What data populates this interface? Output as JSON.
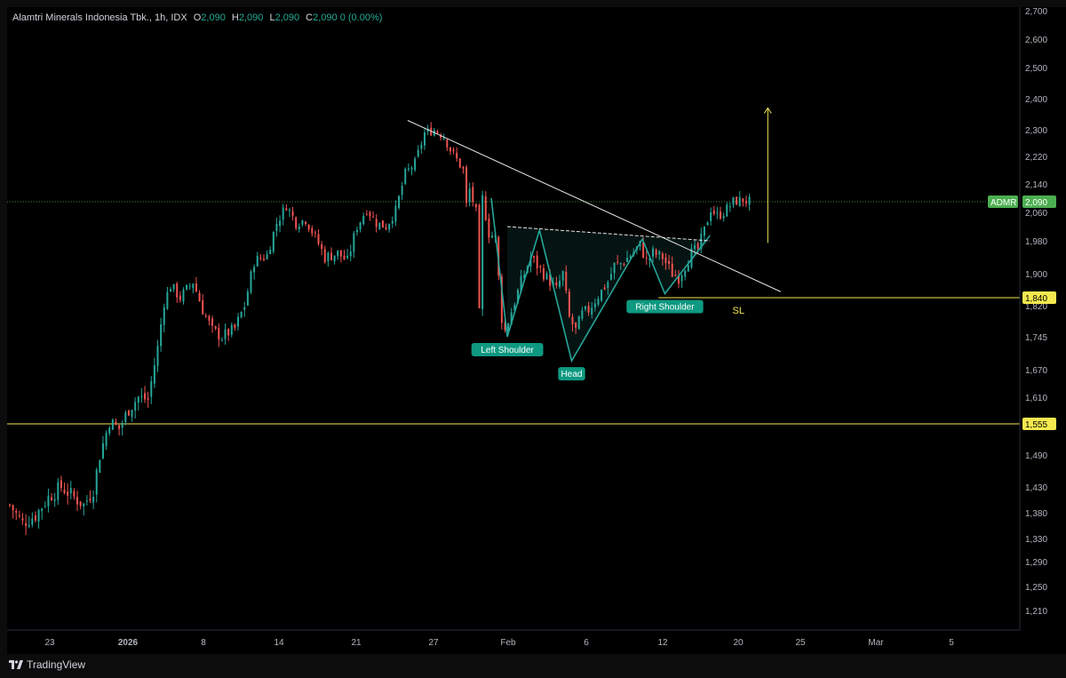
{
  "header": {
    "instrument": "Alamtri Minerals Indonesia Tbk., 1h, IDX",
    "ohlc": [
      {
        "label": "O",
        "value": "2,090"
      },
      {
        "label": "H",
        "value": "2,090"
      },
      {
        "label": "L",
        "value": "2,090"
      },
      {
        "label": "C",
        "value": "2,090"
      }
    ],
    "change": "0 (0.00%)"
  },
  "brand": {
    "name": "TradingView"
  },
  "colors": {
    "up": "#26a69a",
    "down": "#ef5350",
    "pattern": "#26a69a",
    "level": "#f5e94f",
    "trendline": "#e6e6e6",
    "badge": "#4caf50"
  },
  "chart_data": {
    "type": "candlestick",
    "symbol": "ADMR",
    "last_price": "2,090",
    "y_axis": {
      "ticks": [
        1210,
        1250,
        1290,
        1330,
        1380,
        1430,
        1490,
        1555,
        1610,
        1670,
        1745,
        1820,
        1900,
        1980,
        2060,
        2140,
        2220,
        2300,
        2400,
        2500,
        2600,
        2700
      ],
      "tick_labels": [
        "1,210",
        "1,250",
        "1,290",
        "1,330",
        "1,380",
        "1,430",
        "1,490",
        "1,555",
        "1,610",
        "1,670",
        "1,745",
        "1,820",
        "1,900",
        "1,980",
        "2,060",
        "2,140",
        "2,220",
        "2,300",
        "2,400",
        "2,500",
        "2,600",
        "2,700"
      ]
    },
    "x_axis": {
      "labels": [
        "23",
        "2026",
        "8",
        "14",
        "21",
        "27",
        "Feb",
        "6",
        "12",
        "20",
        "25",
        "Mar",
        "5"
      ]
    },
    "price_path": [
      [
        0,
        1395
      ],
      [
        4,
        1360
      ],
      [
        8,
        1375
      ],
      [
        12,
        1410
      ],
      [
        16,
        1430
      ],
      [
        20,
        1410
      ],
      [
        23,
        1395
      ],
      [
        26,
        1425
      ],
      [
        28,
        1490
      ],
      [
        31,
        1560
      ],
      [
        34,
        1545
      ],
      [
        37,
        1585
      ],
      [
        40,
        1610
      ],
      [
        43,
        1605
      ],
      [
        46,
        1720
      ],
      [
        48,
        1830
      ],
      [
        50,
        1870
      ],
      [
        53,
        1840
      ],
      [
        57,
        1880
      ],
      [
        60,
        1810
      ],
      [
        63,
        1760
      ],
      [
        66,
        1745
      ],
      [
        70,
        1765
      ],
      [
        73,
        1820
      ],
      [
        76,
        1930
      ],
      [
        80,
        1945
      ],
      [
        83,
        2030
      ],
      [
        86,
        2080
      ],
      [
        89,
        2030
      ],
      [
        92,
        2040
      ],
      [
        95,
        1990
      ],
      [
        98,
        1940
      ],
      [
        102,
        1950
      ],
      [
        105,
        1930
      ],
      [
        108,
        2020
      ],
      [
        111,
        2070
      ],
      [
        114,
        2030
      ],
      [
        117,
        2020
      ],
      [
        120,
        2065
      ],
      [
        123,
        2170
      ],
      [
        126,
        2200
      ],
      [
        129,
        2290
      ],
      [
        132,
        2300
      ],
      [
        135,
        2280
      ],
      [
        137,
        2240
      ],
      [
        139,
        2210
      ],
      [
        141,
        2180
      ],
      [
        142,
        2080
      ],
      [
        143,
        2125
      ],
      [
        145,
        2060
      ],
      [
        146,
        1800
      ],
      [
        147,
        2100
      ],
      [
        149,
        2000
      ],
      [
        151,
        1990
      ],
      [
        153,
        1790
      ],
      [
        154,
        1760
      ],
      [
        157,
        1830
      ],
      [
        159,
        1880
      ],
      [
        162,
        1940
      ],
      [
        164,
        1920
      ],
      [
        166,
        1900
      ],
      [
        168,
        1880
      ],
      [
        170,
        1860
      ],
      [
        172,
        1900
      ],
      [
        174,
        1790
      ],
      [
        176,
        1760
      ],
      [
        178,
        1800
      ],
      [
        180,
        1810
      ],
      [
        183,
        1845
      ],
      [
        186,
        1880
      ],
      [
        188,
        1920
      ],
      [
        190,
        1925
      ],
      [
        193,
        1945
      ],
      [
        196,
        1970
      ],
      [
        198,
        1930
      ],
      [
        200,
        1950
      ],
      [
        203,
        1940
      ],
      [
        206,
        1900
      ],
      [
        208,
        1890
      ],
      [
        210,
        1920
      ],
      [
        212,
        1950
      ],
      [
        214,
        1960
      ],
      [
        216,
        2010
      ],
      [
        218,
        2070
      ],
      [
        220,
        2050
      ],
      [
        222,
        2060
      ],
      [
        225,
        2090
      ],
      [
        228,
        2095
      ],
      [
        230,
        2090
      ]
    ],
    "annotations": {
      "pattern_labels": [
        "Left Shoulder",
        "Head",
        "Right Shoulder"
      ],
      "stop_label": "SL",
      "levels": [
        {
          "price": 1840,
          "label": "1,840"
        },
        {
          "price": 1555,
          "label": "1,555"
        }
      ],
      "last_price_line": 2090,
      "pattern_points": [
        [
          150,
          2100
        ],
        [
          155,
          1745
        ],
        [
          165,
          2010
        ],
        [
          175,
          1690
        ],
        [
          197,
          1985
        ],
        [
          204,
          1850
        ],
        [
          218,
          1995
        ]
      ],
      "neckline": [
        [
          155,
          2020
        ],
        [
          218,
          1980
        ]
      ],
      "downtrend_line": [
        [
          124,
          2330
        ],
        [
          240,
          1855
        ]
      ],
      "target_arrow": [
        [
          236,
          1975
        ],
        [
          236,
          2370
        ]
      ]
    }
  }
}
